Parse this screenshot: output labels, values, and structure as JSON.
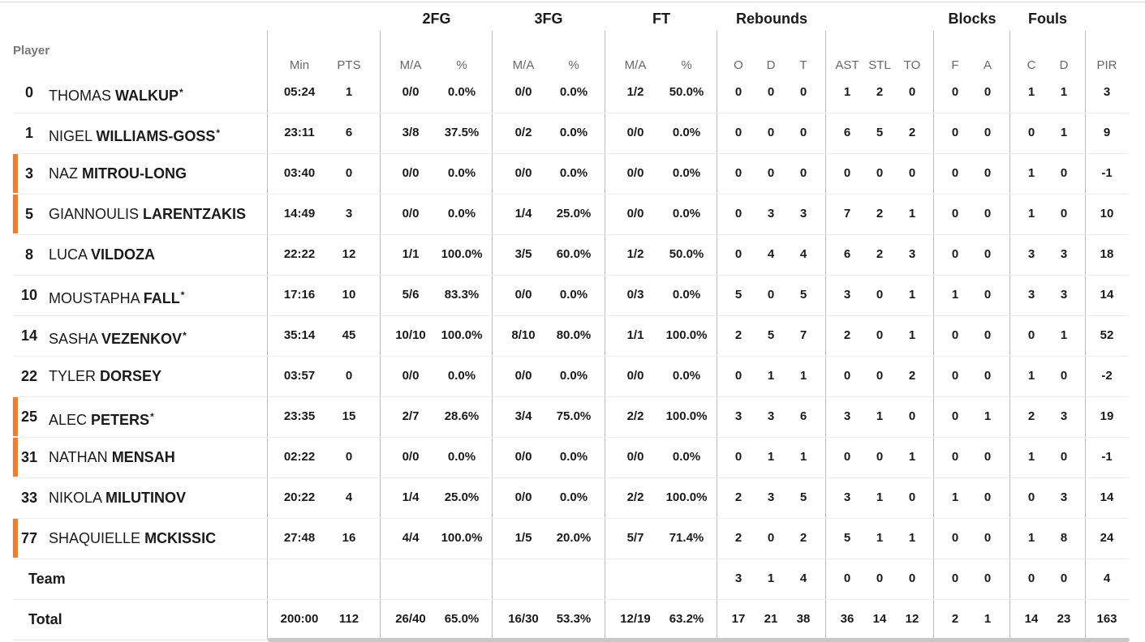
{
  "table": {
    "groups": {
      "fg2": "2FG",
      "fg3": "3FG",
      "ft": "FT",
      "rebounds": "Rebounds",
      "blocks": "Blocks",
      "fouls": "Fouls"
    },
    "player_header": "Player",
    "columns": {
      "min": "Min",
      "pts": "PTS",
      "fg2_ma": "M/A",
      "fg2_pct": "%",
      "fg3_ma": "M/A",
      "fg3_pct": "%",
      "ft_ma": "M/A",
      "ft_pct": "%",
      "o": "O",
      "d": "D",
      "t": "T",
      "ast": "AST",
      "stl": "STL",
      "to": "TO",
      "f": "F",
      "a": "A",
      "c": "C",
      "fd": "D",
      "pir": "PIR"
    },
    "bench_marker_color": "#f47c2a",
    "starter_mark": "*",
    "players": [
      {
        "num": "0",
        "first": "THOMAS",
        "last": "WALKUP",
        "starter": true,
        "marker": false,
        "min": "05:24",
        "pts": "1",
        "fg2_ma": "0/0",
        "fg2_pct": "0.0%",
        "fg3_ma": "0/0",
        "fg3_pct": "0.0%",
        "ft_ma": "1/2",
        "ft_pct": "50.0%",
        "o": "0",
        "d": "0",
        "t": "0",
        "ast": "1",
        "stl": "2",
        "to": "0",
        "f": "0",
        "a": "0",
        "c": "1",
        "fd": "1",
        "pir": "3"
      },
      {
        "num": "1",
        "first": "NIGEL",
        "last": "WILLIAMS-GOSS",
        "starter": true,
        "marker": false,
        "min": "23:11",
        "pts": "6",
        "fg2_ma": "3/8",
        "fg2_pct": "37.5%",
        "fg3_ma": "0/2",
        "fg3_pct": "0.0%",
        "ft_ma": "0/0",
        "ft_pct": "0.0%",
        "o": "0",
        "d": "0",
        "t": "0",
        "ast": "6",
        "stl": "5",
        "to": "2",
        "f": "0",
        "a": "0",
        "c": "0",
        "fd": "1",
        "pir": "9"
      },
      {
        "num": "3",
        "first": "NAZ",
        "last": "MITROU-LONG",
        "starter": false,
        "marker": true,
        "min": "03:40",
        "pts": "0",
        "fg2_ma": "0/0",
        "fg2_pct": "0.0%",
        "fg3_ma": "0/0",
        "fg3_pct": "0.0%",
        "ft_ma": "0/0",
        "ft_pct": "0.0%",
        "o": "0",
        "d": "0",
        "t": "0",
        "ast": "0",
        "stl": "0",
        "to": "0",
        "f": "0",
        "a": "0",
        "c": "1",
        "fd": "0",
        "pir": "-1"
      },
      {
        "num": "5",
        "first": "GIANNOULIS",
        "last": "LARENTZAKIS",
        "starter": false,
        "marker": true,
        "min": "14:49",
        "pts": "3",
        "fg2_ma": "0/0",
        "fg2_pct": "0.0%",
        "fg3_ma": "1/4",
        "fg3_pct": "25.0%",
        "ft_ma": "0/0",
        "ft_pct": "0.0%",
        "o": "0",
        "d": "3",
        "t": "3",
        "ast": "7",
        "stl": "2",
        "to": "1",
        "f": "0",
        "a": "0",
        "c": "1",
        "fd": "0",
        "pir": "10"
      },
      {
        "num": "8",
        "first": "LUCA",
        "last": "VILDOZA",
        "starter": false,
        "marker": false,
        "min": "22:22",
        "pts": "12",
        "fg2_ma": "1/1",
        "fg2_pct": "100.0%",
        "fg3_ma": "3/5",
        "fg3_pct": "60.0%",
        "ft_ma": "1/2",
        "ft_pct": "50.0%",
        "o": "0",
        "d": "4",
        "t": "4",
        "ast": "6",
        "stl": "2",
        "to": "3",
        "f": "0",
        "a": "0",
        "c": "3",
        "fd": "3",
        "pir": "18"
      },
      {
        "num": "10",
        "first": "MOUSTAPHA",
        "last": "FALL",
        "starter": true,
        "marker": false,
        "min": "17:16",
        "pts": "10",
        "fg2_ma": "5/6",
        "fg2_pct": "83.3%",
        "fg3_ma": "0/0",
        "fg3_pct": "0.0%",
        "ft_ma": "0/3",
        "ft_pct": "0.0%",
        "o": "5",
        "d": "0",
        "t": "5",
        "ast": "3",
        "stl": "0",
        "to": "1",
        "f": "1",
        "a": "0",
        "c": "3",
        "fd": "3",
        "pir": "14"
      },
      {
        "num": "14",
        "first": "SASHA",
        "last": "VEZENKOV",
        "starter": true,
        "marker": false,
        "min": "35:14",
        "pts": "45",
        "fg2_ma": "10/10",
        "fg2_pct": "100.0%",
        "fg3_ma": "8/10",
        "fg3_pct": "80.0%",
        "ft_ma": "1/1",
        "ft_pct": "100.0%",
        "o": "2",
        "d": "5",
        "t": "7",
        "ast": "2",
        "stl": "0",
        "to": "1",
        "f": "0",
        "a": "0",
        "c": "0",
        "fd": "1",
        "pir": "52"
      },
      {
        "num": "22",
        "first": "TYLER",
        "last": "DORSEY",
        "starter": false,
        "marker": false,
        "min": "03:57",
        "pts": "0",
        "fg2_ma": "0/0",
        "fg2_pct": "0.0%",
        "fg3_ma": "0/0",
        "fg3_pct": "0.0%",
        "ft_ma": "0/0",
        "ft_pct": "0.0%",
        "o": "0",
        "d": "1",
        "t": "1",
        "ast": "0",
        "stl": "0",
        "to": "2",
        "f": "0",
        "a": "0",
        "c": "1",
        "fd": "0",
        "pir": "-2"
      },
      {
        "num": "25",
        "first": "ALEC",
        "last": "PETERS",
        "starter": true,
        "marker": true,
        "min": "23:35",
        "pts": "15",
        "fg2_ma": "2/7",
        "fg2_pct": "28.6%",
        "fg3_ma": "3/4",
        "fg3_pct": "75.0%",
        "ft_ma": "2/2",
        "ft_pct": "100.0%",
        "o": "3",
        "d": "3",
        "t": "6",
        "ast": "3",
        "stl": "1",
        "to": "0",
        "f": "0",
        "a": "1",
        "c": "2",
        "fd": "3",
        "pir": "19"
      },
      {
        "num": "31",
        "first": "NATHAN",
        "last": "MENSAH",
        "starter": false,
        "marker": true,
        "min": "02:22",
        "pts": "0",
        "fg2_ma": "0/0",
        "fg2_pct": "0.0%",
        "fg3_ma": "0/0",
        "fg3_pct": "0.0%",
        "ft_ma": "0/0",
        "ft_pct": "0.0%",
        "o": "0",
        "d": "1",
        "t": "1",
        "ast": "0",
        "stl": "0",
        "to": "1",
        "f": "0",
        "a": "0",
        "c": "1",
        "fd": "0",
        "pir": "-1"
      },
      {
        "num": "33",
        "first": "NIKOLA",
        "last": "MILUTINOV",
        "starter": false,
        "marker": false,
        "min": "20:22",
        "pts": "4",
        "fg2_ma": "1/4",
        "fg2_pct": "25.0%",
        "fg3_ma": "0/0",
        "fg3_pct": "0.0%",
        "ft_ma": "2/2",
        "ft_pct": "100.0%",
        "o": "2",
        "d": "3",
        "t": "5",
        "ast": "3",
        "stl": "1",
        "to": "0",
        "f": "1",
        "a": "0",
        "c": "0",
        "fd": "3",
        "pir": "14"
      },
      {
        "num": "77",
        "first": "SHAQUIELLE",
        "last": "MCKISSIC",
        "starter": false,
        "marker": true,
        "min": "27:48",
        "pts": "16",
        "fg2_ma": "4/4",
        "fg2_pct": "100.0%",
        "fg3_ma": "1/5",
        "fg3_pct": "20.0%",
        "ft_ma": "5/7",
        "ft_pct": "71.4%",
        "o": "2",
        "d": "0",
        "t": "2",
        "ast": "5",
        "stl": "1",
        "to": "1",
        "f": "0",
        "a": "0",
        "c": "1",
        "fd": "8",
        "pir": "24"
      }
    ],
    "team": {
      "label": "Team",
      "min": "",
      "pts": "",
      "fg2_ma": "",
      "fg2_pct": "",
      "fg3_ma": "",
      "fg3_pct": "",
      "ft_ma": "",
      "ft_pct": "",
      "o": "3",
      "d": "1",
      "t": "4",
      "ast": "0",
      "stl": "0",
      "to": "0",
      "f": "0",
      "a": "0",
      "c": "0",
      "fd": "0",
      "pir": "4"
    },
    "total": {
      "label": "Total",
      "min": "200:00",
      "pts": "112",
      "fg2_ma": "26/40",
      "fg2_pct": "65.0%",
      "fg3_ma": "16/30",
      "fg3_pct": "53.3%",
      "ft_ma": "12/19",
      "ft_pct": "63.2%",
      "o": "17",
      "d": "21",
      "t": "38",
      "ast": "36",
      "stl": "14",
      "to": "12",
      "f": "2",
      "a": "1",
      "c": "14",
      "fd": "23",
      "pir": "163"
    }
  }
}
